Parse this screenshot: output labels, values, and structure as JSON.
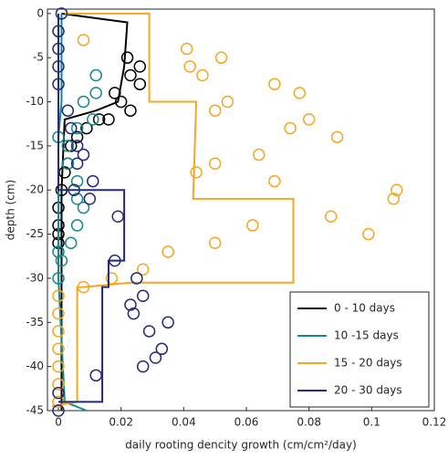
{
  "chart_data": {
    "type": "scatter-line",
    "xlabel": "daily rooting dencity growth (cm/cm²/day)",
    "ylabel": "depth (cm)",
    "xlim": [
      -0.0035,
      0.12
    ],
    "ylim": [
      -45,
      0.5
    ],
    "xticks": [
      0,
      0.02,
      0.04,
      0.06,
      0.08,
      0.1,
      0.12
    ],
    "yticks": [
      0,
      -5,
      -10,
      -15,
      -20,
      -25,
      -30,
      -35,
      -40,
      -45
    ],
    "grid": false,
    "legend": "lower right",
    "series": [
      {
        "name": "0 - 10 days",
        "color": "#000000",
        "line": {
          "x": [
            0.001,
            0.022,
            0.021,
            0.019,
            0.012,
            0.002,
            0.001,
            0.001
          ],
          "y": [
            0,
            -1,
            -6,
            -10,
            -11,
            -12,
            -20,
            -45
          ]
        },
        "points": {
          "x": [
            0.022,
            0.026,
            0.026,
            0.023,
            0.018,
            0.02,
            0.023,
            0.016,
            0.013,
            0.009,
            0.006,
            0.004,
            0.003,
            0.002,
            0.001,
            0,
            0,
            0,
            0
          ],
          "y": [
            -5,
            -6,
            -8,
            -7,
            -9,
            -10,
            -11,
            -12,
            -12,
            -13,
            -14,
            -15,
            -17,
            -18,
            -20,
            -22,
            -24,
            -25,
            -26
          ]
        }
      },
      {
        "name": "10 -15 days",
        "color": "#138a8c",
        "line": {
          "x": [
            0.001,
            0.001,
            0,
            0,
            0.002,
            0.009
          ],
          "y": [
            0,
            -10,
            -14,
            -30,
            -44,
            -45
          ]
        },
        "points": {
          "x": [
            0.012,
            0.012,
            0.008,
            0.011,
            0.006,
            0,
            0.003,
            0.003,
            0.006,
            0.006,
            0.008,
            0.006,
            0.004,
            0,
            0.001,
            0
          ],
          "y": [
            -7,
            -9,
            -10,
            -12,
            -13,
            -14,
            -15,
            -17,
            -19,
            -21,
            -22,
            -24,
            -26,
            -27,
            -28,
            -30
          ]
        }
      },
      {
        "name": "15 - 20 days",
        "color": "#f5a623",
        "line": {
          "x": [
            0.002,
            0.029,
            0.029,
            0.044,
            0.043,
            0.075,
            0.075,
            0.023,
            0.008,
            0.006,
            0.006,
            -0.002
          ],
          "y": [
            0,
            0,
            -10,
            -10,
            -21,
            -21,
            -30.5,
            -30.5,
            -31,
            -31,
            -44,
            -44.5
          ]
        },
        "points": {
          "x": [
            0.008,
            0.041,
            0.052,
            0.042,
            0.046,
            0.069,
            0.077,
            0.054,
            0.05,
            0.08,
            0.074,
            0.089,
            0.064,
            0.05,
            0.044,
            0.069,
            0.108,
            0.107,
            0.087,
            0.062,
            0.099,
            0.05,
            0.035,
            0.027,
            0.017,
            0.008,
            0,
            0,
            0,
            0,
            0,
            0,
            0
          ],
          "y": [
            -3,
            -4,
            -5,
            -6,
            -7,
            -8,
            -9,
            -10,
            -11,
            -12,
            -13,
            -14,
            -16,
            -17,
            -18,
            -19,
            -20,
            -21,
            -23,
            -24,
            -25,
            -26,
            -27,
            -29,
            -30,
            -31,
            -32,
            -34,
            -36,
            -38,
            -40,
            -42,
            -44
          ]
        }
      },
      {
        "name": "20 - 30 days",
        "color": "#232a78",
        "line": {
          "x": [
            0,
            0,
            0.021,
            0.021,
            0.016,
            0.016,
            0.014,
            0.014,
            0
          ],
          "y": [
            0,
            -20,
            -20,
            -28,
            -28,
            -31,
            -31,
            -44,
            -44
          ]
        },
        "points": {
          "x": [
            0.001,
            0,
            0,
            0,
            0,
            0.003,
            0.004,
            0.006,
            0.008,
            0.006,
            0.011,
            0.005,
            0.01,
            0.019,
            0.018,
            0.025,
            0.023,
            0.024,
            0.027,
            0.035,
            0.029,
            0.033,
            0.031,
            0.027,
            0,
            0.012,
            0
          ],
          "y": [
            0,
            -2,
            -4,
            -6,
            -8,
            -11,
            -13,
            -15,
            -16,
            -17,
            -19,
            -20,
            -21,
            -23,
            -28,
            -30,
            -33,
            -34,
            -32,
            -35,
            -36,
            -38,
            -39,
            -40,
            -43,
            -41,
            -45
          ]
        }
      }
    ]
  }
}
